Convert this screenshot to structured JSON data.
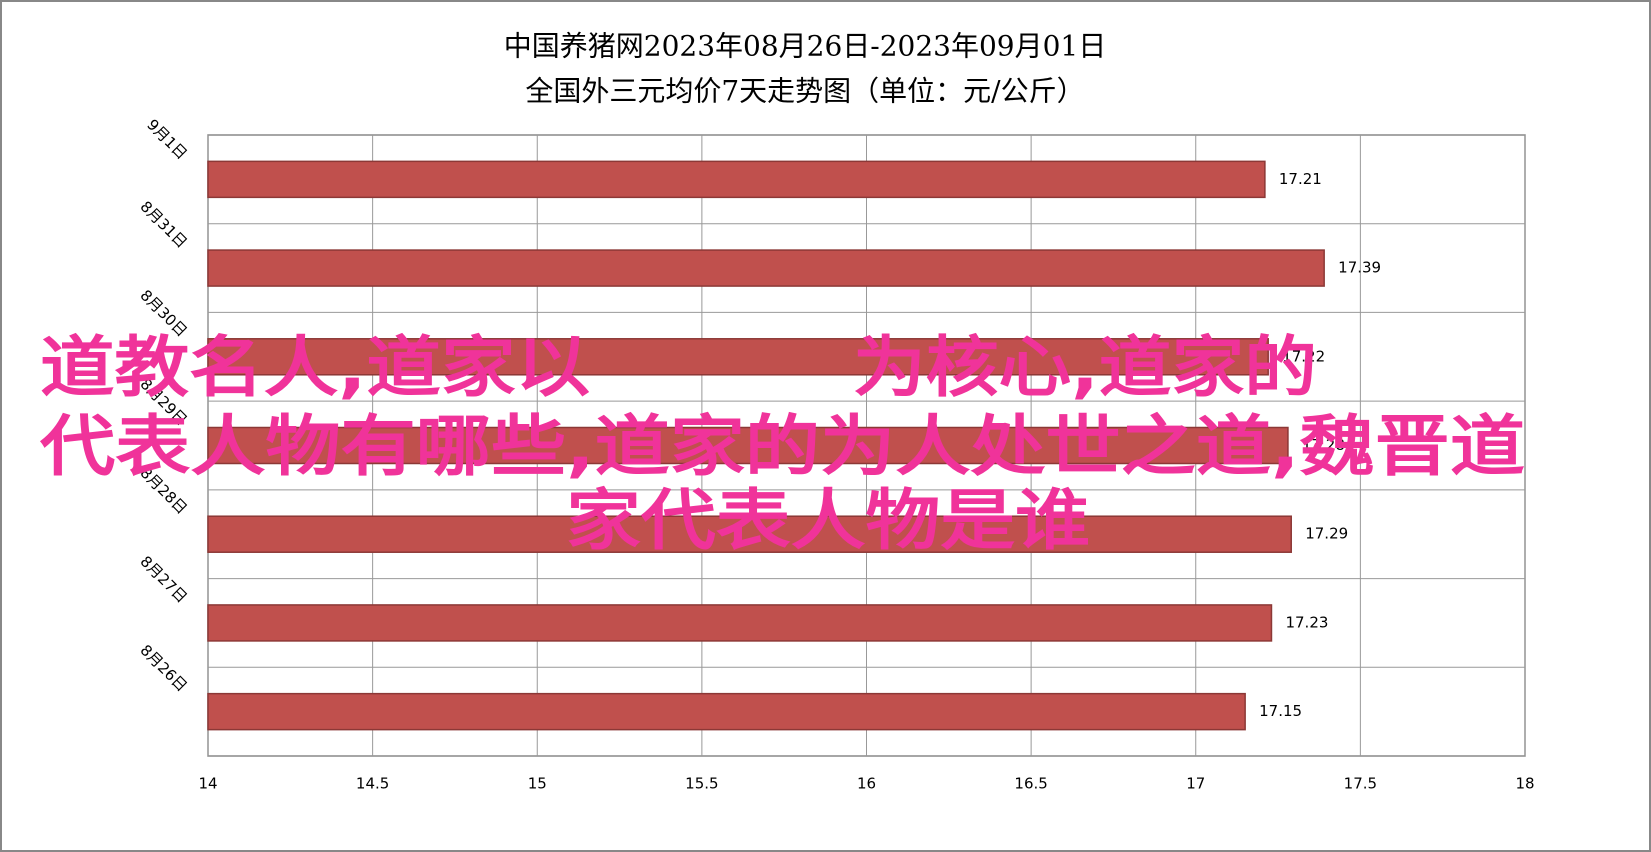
{
  "chart_data": {
    "type": "barh",
    "title": "中国养猪网2023年08月26日-2023年09月01日",
    "subtitle": "全国外三元均价7天走势图（单位：元/公斤）",
    "categories": [
      "9月1日",
      "8月31日",
      "8月30日",
      "8月29日",
      "8月28日",
      "8月27日",
      "8月26日"
    ],
    "values": [
      17.21,
      17.39,
      17.22,
      17.28,
      17.29,
      17.23,
      17.15
    ],
    "color": "#c0504d",
    "xlim": [
      14,
      18
    ],
    "xticks": [
      14,
      14.5,
      15,
      15.5,
      16,
      16.5,
      17,
      17.5,
      18
    ],
    "grid": true,
    "overlay_text": [
      "道教名人,道家以",
      "为核心,道家的",
      "代表人物有哪些,道家的为人处世之道,魏晋道",
      "家代表人物是谁"
    ]
  }
}
